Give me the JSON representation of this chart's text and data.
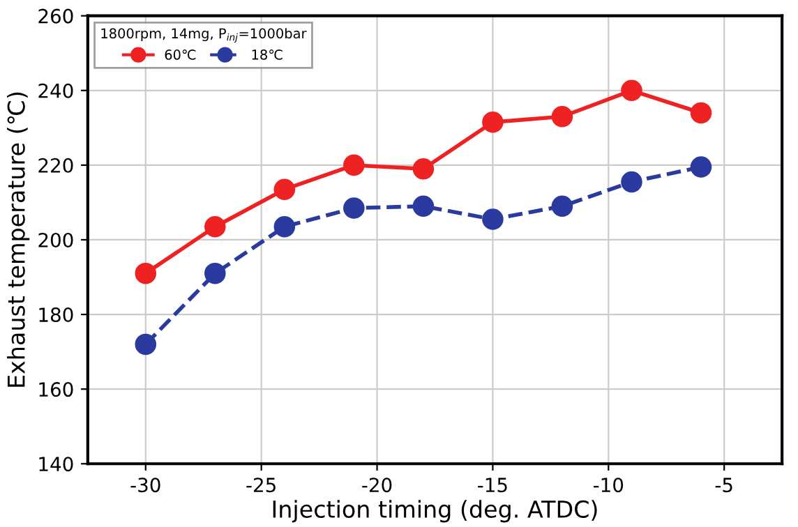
{
  "chart_data": {
    "type": "line",
    "xlabel": "Injection timing (deg. ATDC)",
    "ylabel": "Exhaust temperature (℃)",
    "legend_title": "1800rpm, 14mg, P$_{inj}$=1000bar",
    "x": [
      -30,
      -27,
      -24,
      -21,
      -18,
      -15,
      -12,
      -9,
      -6
    ],
    "series": [
      {
        "name": "60℃",
        "color": "#ee2222",
        "line_style": "solid",
        "values": [
          191,
          203.5,
          213.5,
          220,
          219,
          231.5,
          233,
          240,
          234
        ]
      },
      {
        "name": "18℃",
        "color": "#2a3a9e",
        "line_style": "dashed",
        "values": [
          172,
          191,
          203.5,
          208.5,
          209,
          205.5,
          209,
          215.5,
          219.5
        ]
      }
    ],
    "xlim": [
      -32.5,
      -2.5
    ],
    "ylim": [
      140,
      260
    ],
    "xticks": [
      -30,
      -25,
      -20,
      -15,
      -10,
      -5
    ],
    "yticks": [
      140,
      160,
      180,
      200,
      220,
      240,
      260
    ],
    "grid": true,
    "legend": "top left",
    "marker": "circle"
  }
}
